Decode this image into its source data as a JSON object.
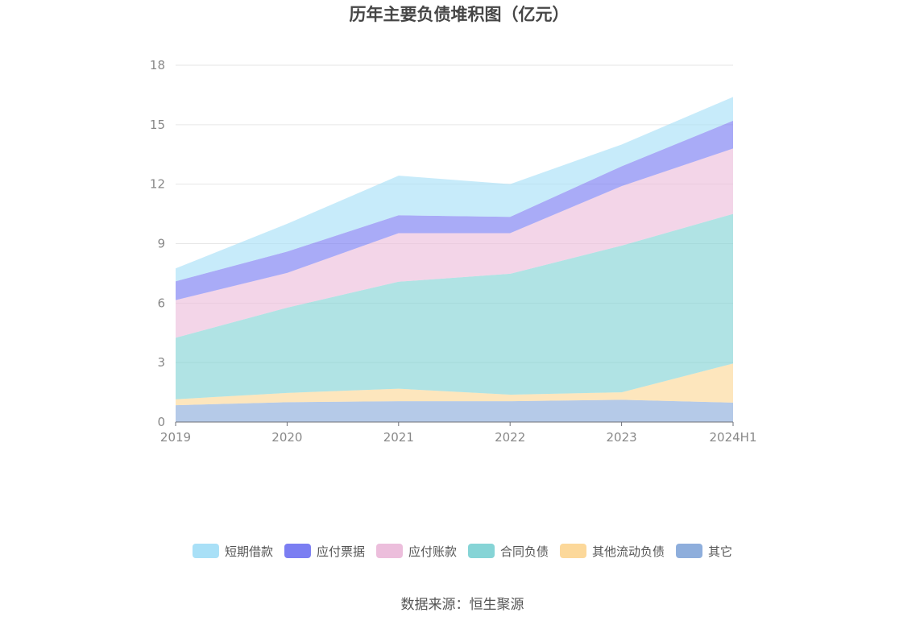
{
  "chart_data": {
    "type": "area",
    "stacked": true,
    "title": "历年主要负债堆积图（亿元）",
    "categories": [
      "2019",
      "2020",
      "2021",
      "2022",
      "2023",
      "2024H1"
    ],
    "ylim": [
      0,
      18
    ],
    "yticks": [
      "0",
      "3",
      "6",
      "9",
      "12",
      "15",
      "18"
    ],
    "grid": true,
    "legend_position": "bottom",
    "series": [
      {
        "name": "其它",
        "color": "#8eaedc",
        "values": [
          0.85,
          1.0,
          1.05,
          1.05,
          1.12,
          0.98
        ]
      },
      {
        "name": "其他流动负债",
        "color": "#fcd89a",
        "values": [
          0.3,
          0.47,
          0.63,
          0.33,
          0.38,
          1.97
        ]
      },
      {
        "name": "合同负债",
        "color": "#86d4d6",
        "values": [
          3.1,
          4.3,
          5.4,
          6.1,
          7.4,
          7.55
        ]
      },
      {
        "name": "应付账款",
        "color": "#ecbedc",
        "values": [
          1.9,
          1.75,
          2.45,
          2.05,
          3.0,
          3.3
        ]
      },
      {
        "name": "应付票据",
        "color": "#7b7ef2",
        "values": [
          0.95,
          1.08,
          0.9,
          0.82,
          1.0,
          1.4
        ]
      },
      {
        "name": "短期借款",
        "color": "#a9e0f7",
        "values": [
          0.65,
          1.4,
          2.0,
          1.65,
          1.1,
          1.2
        ]
      }
    ],
    "legend_order": [
      "短期借款",
      "应付票据",
      "应付账款",
      "合同负债",
      "其他流动负债",
      "其它"
    ]
  },
  "source_text": "数据来源：恒生聚源"
}
